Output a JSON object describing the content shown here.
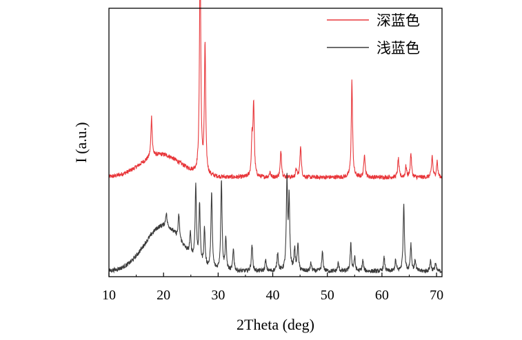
{
  "chart_data": {
    "type": "line",
    "title": "",
    "xlabel": "2Theta (deg)",
    "ylabel": "I (a.u.)",
    "xlim": [
      10,
      71
    ],
    "ylim": [
      0,
      1
    ],
    "xticks": [
      10,
      20,
      30,
      40,
      50,
      60,
      70
    ],
    "xtick_labels": [
      "10",
      "20",
      "30",
      "40",
      "50",
      "60",
      "70"
    ],
    "y_tick_labels_shown": false,
    "grid": false,
    "legend_position": "top-right",
    "series": [
      {
        "name": "深蓝色",
        "color": "#e8363a",
        "baseline": 0.37,
        "halo": {
          "center": 19.5,
          "height": 0.085,
          "width": 3.6
        },
        "peaks": [
          [
            17.8,
            0.15
          ],
          [
            26.7,
            0.85
          ],
          [
            27.6,
            0.48
          ],
          [
            36.2,
            0.13
          ],
          [
            36.5,
            0.27
          ],
          [
            39.5,
            0.02
          ],
          [
            41.5,
            0.1
          ],
          [
            44.3,
            0.03
          ],
          [
            45.1,
            0.12
          ],
          [
            54.5,
            0.36
          ],
          [
            56.8,
            0.09
          ],
          [
            63.0,
            0.07
          ],
          [
            64.4,
            0.04
          ],
          [
            65.3,
            0.09
          ],
          [
            69.2,
            0.08
          ],
          [
            70.1,
            0.06
          ]
        ]
      },
      {
        "name": "浅蓝色",
        "color": "#3b3b3b",
        "baseline": 0.02,
        "halo": {
          "center": 20.0,
          "height": 0.17,
          "width": 3.4
        },
        "peaks": [
          [
            20.5,
            0.05
          ],
          [
            22.8,
            0.09
          ],
          [
            24.9,
            0.08
          ],
          [
            25.9,
            0.28
          ],
          [
            26.6,
            0.22
          ],
          [
            27.5,
            0.14
          ],
          [
            28.8,
            0.29
          ],
          [
            30.6,
            0.34
          ],
          [
            31.4,
            0.12
          ],
          [
            32.8,
            0.08
          ],
          [
            36.2,
            0.1
          ],
          [
            38.7,
            0.04
          ],
          [
            40.9,
            0.07
          ],
          [
            42.6,
            0.33
          ],
          [
            43.0,
            0.26
          ],
          [
            44.0,
            0.08
          ],
          [
            44.6,
            0.1
          ],
          [
            47.0,
            0.03
          ],
          [
            49.1,
            0.07
          ],
          [
            52.0,
            0.03
          ],
          [
            54.3,
            0.1
          ],
          [
            55.0,
            0.05
          ],
          [
            56.5,
            0.04
          ],
          [
            60.4,
            0.05
          ],
          [
            62.5,
            0.04
          ],
          [
            64.0,
            0.25
          ],
          [
            65.3,
            0.1
          ],
          [
            66.1,
            0.04
          ],
          [
            68.9,
            0.04
          ],
          [
            69.8,
            0.03
          ]
        ]
      }
    ]
  }
}
